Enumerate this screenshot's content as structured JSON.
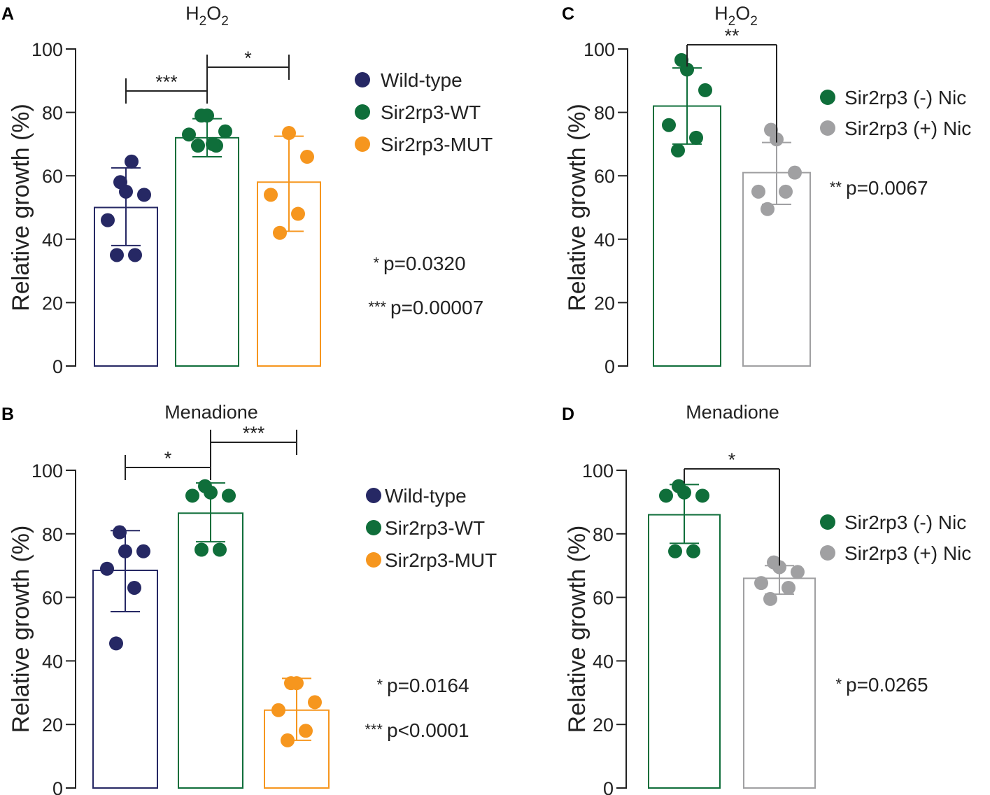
{
  "colors": {
    "navy": "#262864",
    "green": "#0f6e3a",
    "orange": "#f6961e",
    "gray": "#a0a0a2",
    "axis": "#222222"
  },
  "chart_data": [
    {
      "panel": "A",
      "type": "bar",
      "title": "H₂O₂",
      "title_main": "H",
      "title_sub1": "2",
      "title_mid": "O",
      "title_sub2": "2",
      "ylabel": "Relative growth (%)",
      "ylim": [
        0,
        100
      ],
      "yticks": [
        "0",
        "20",
        "40",
        "60",
        "80",
        "100"
      ],
      "categories": [
        "Wild-type",
        "Sir2rp3-WT",
        "Sir2rp3-MUT"
      ],
      "series": [
        {
          "name": "Wild-type",
          "color": "navy",
          "mean": 50,
          "sd_low": 38,
          "sd_high": 62.5,
          "points": [
            35,
            35,
            46,
            54,
            55,
            58,
            64.5
          ]
        },
        {
          "name": "Sir2rp3-WT",
          "color": "green",
          "mean": 72,
          "sd_low": 66,
          "sd_high": 78,
          "points": [
            69.5,
            69.5,
            73,
            74,
            79,
            79,
            70
          ]
        },
        {
          "name": "Sir2rp3-MUT",
          "color": "orange",
          "mean": 58,
          "sd_low": 42.5,
          "sd_high": 72.5,
          "points": [
            42,
            48,
            54,
            66,
            73.5
          ]
        }
      ],
      "brackets": [
        {
          "from": 0,
          "to": 1,
          "label": "***"
        },
        {
          "from": 1,
          "to": 2,
          "label": "*"
        }
      ],
      "legend": [
        "Wild-type",
        "Sir2rp3-WT",
        "Sir2rp3-MUT"
      ],
      "pvalues": [
        {
          "stars": "*",
          "text": "p=0.0320"
        },
        {
          "stars": "***",
          "text": "p=0.00007"
        }
      ]
    },
    {
      "panel": "B",
      "type": "bar",
      "title": "Menadione",
      "ylabel": "Relative growth (%)",
      "ylim": [
        0,
        100
      ],
      "yticks": [
        "0",
        "20",
        "40",
        "60",
        "80",
        "100"
      ],
      "categories": [
        "Wild-type",
        "Sir2rp3-WT",
        "Sir2rp3-MUT"
      ],
      "series": [
        {
          "name": "Wild-type",
          "color": "navy",
          "mean": 68.5,
          "sd_low": 55.5,
          "sd_high": 81,
          "points": [
            45.5,
            63,
            69,
            74.5,
            74.5,
            80.5
          ]
        },
        {
          "name": "Sir2rp3-WT",
          "color": "green",
          "mean": 86.5,
          "sd_low": 77.5,
          "sd_high": 96,
          "points": [
            75,
            75,
            92,
            92,
            93,
            95
          ]
        },
        {
          "name": "Sir2rp3-MUT",
          "color": "orange",
          "mean": 24.5,
          "sd_low": 15,
          "sd_high": 34.5,
          "points": [
            15,
            18,
            24.5,
            27,
            33,
            33
          ]
        }
      ],
      "brackets": [
        {
          "from": 0,
          "to": 1,
          "label": "*"
        },
        {
          "from": 1,
          "to": 2,
          "label": "***"
        }
      ],
      "legend": [
        "Wild-type",
        "Sir2rp3-WT",
        "Sir2rp3-MUT"
      ],
      "pvalues": [
        {
          "stars": "*",
          "text": "p=0.0164"
        },
        {
          "stars": "***",
          "text": "p<0.0001"
        }
      ]
    },
    {
      "panel": "C",
      "type": "bar",
      "title": "H₂O₂",
      "title_main": "H",
      "title_sub1": "2",
      "title_mid": "O",
      "title_sub2": "2",
      "ylabel": "Relative growth (%)",
      "ylim": [
        0,
        100
      ],
      "yticks": [
        "0",
        "20",
        "40",
        "60",
        "80",
        "100"
      ],
      "categories": [
        "Sir2rp3 (-) Nic",
        "Sir2rp3 (+) Nic"
      ],
      "series": [
        {
          "name": "Sir2rp3 (-) Nic",
          "color": "green",
          "mean": 82,
          "sd_low": 70,
          "sd_high": 94,
          "points": [
            68,
            72,
            76,
            87,
            93.5,
            96.5
          ]
        },
        {
          "name": "Sir2rp3 (+) Nic",
          "color": "gray",
          "mean": 61,
          "sd_low": 51,
          "sd_high": 70.5,
          "points": [
            49.5,
            55,
            55,
            61,
            71.5,
            74.5
          ]
        }
      ],
      "brackets": [
        {
          "from": 0,
          "to": 1,
          "label": "**"
        }
      ],
      "legend": [
        "Sir2rp3 (-) Nic",
        "Sir2rp3 (+) Nic"
      ],
      "pvalues": [
        {
          "stars": "**",
          "text": "p=0.0067"
        }
      ]
    },
    {
      "panel": "D",
      "type": "bar",
      "title": "Menadione",
      "ylabel": "Relative growth (%)",
      "ylim": [
        0,
        100
      ],
      "yticks": [
        "0",
        "20",
        "40",
        "60",
        "80",
        "100"
      ],
      "categories": [
        "Sir2rp3 (-) Nic",
        "Sir2rp3 (+) Nic"
      ],
      "series": [
        {
          "name": "Sir2rp3 (-) Nic",
          "color": "green",
          "mean": 86,
          "sd_low": 77,
          "sd_high": 95.5,
          "points": [
            74.5,
            74.5,
            92,
            92,
            93,
            95
          ]
        },
        {
          "name": "Sir2rp3 (+) Nic",
          "color": "gray",
          "mean": 66,
          "sd_low": 61,
          "sd_high": 70,
          "points": [
            59.5,
            63,
            64.5,
            68,
            69.5,
            71
          ]
        }
      ],
      "brackets": [
        {
          "from": 0,
          "to": 1,
          "label": "*"
        }
      ],
      "legend": [
        "Sir2rp3 (-) Nic",
        "Sir2rp3 (+) Nic"
      ],
      "pvalues": [
        {
          "stars": "*",
          "text": "p=0.0265"
        }
      ]
    }
  ]
}
